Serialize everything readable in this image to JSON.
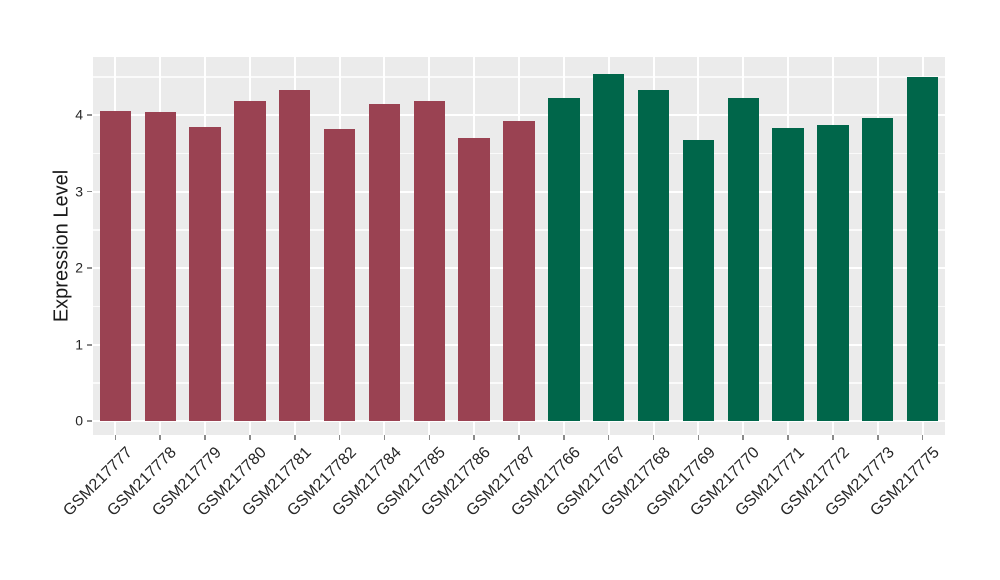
{
  "chart_data": {
    "type": "bar",
    "title": "",
    "xlabel": "",
    "ylabel": "Expression Level",
    "categories": [
      "GSM217777",
      "GSM217778",
      "GSM217779",
      "GSM217780",
      "GSM217781",
      "GSM217782",
      "GSM217784",
      "GSM217785",
      "GSM217786",
      "GSM217787",
      "GSM217766",
      "GSM217767",
      "GSM217768",
      "GSM217769",
      "GSM217770",
      "GSM217771",
      "GSM217772",
      "GSM217773",
      "GSM217775"
    ],
    "values": [
      4.06,
      4.04,
      3.84,
      4.19,
      4.33,
      3.82,
      4.15,
      4.18,
      3.7,
      3.93,
      4.22,
      4.54,
      4.33,
      3.67,
      4.23,
      3.83,
      3.87,
      3.96,
      4.5
    ],
    "bar_groups": [
      0,
      0,
      0,
      0,
      0,
      0,
      0,
      0,
      0,
      0,
      1,
      1,
      1,
      1,
      1,
      1,
      1,
      1,
      1
    ],
    "group_colors": [
      "#9A4252",
      "#00664A"
    ],
    "yticks": [
      0,
      1,
      2,
      3,
      4
    ],
    "y_minor_ticks": [
      0.5,
      1.5,
      2.5,
      3.5,
      4.5
    ],
    "ylim": [
      -0.18,
      4.76
    ],
    "x_tick_angle": 45,
    "grid": true,
    "legend": "none",
    "panel_bg": "#EBEBEB",
    "grid_major_color": "#FFFFFF",
    "grid_minor_color": "#FFFFFF",
    "tick_mark_color": "#8A8A8A",
    "axis_text_color": "#262626",
    "axis_title_color": "#1a1a1a",
    "background_color": "#FFFFFF"
  }
}
